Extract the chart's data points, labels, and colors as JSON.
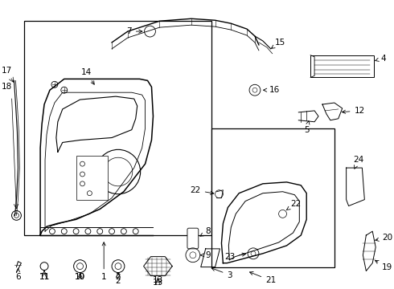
{
  "bg_color": "#ffffff",
  "line_color": "#000000",
  "fig_width": 4.9,
  "fig_height": 3.6,
  "dpi": 100
}
